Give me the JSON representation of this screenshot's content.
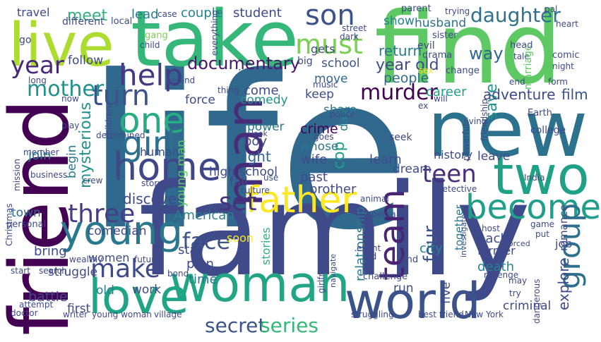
{
  "words": [
    {
      "text": "life",
      "color": "#31688e"
    },
    {
      "text": "family",
      "color": "#3e4a89"
    },
    {
      "text": "find",
      "color": "#5ec962"
    },
    {
      "text": "take",
      "color": "#35b779"
    },
    {
      "text": "new",
      "color": "#2c728e"
    },
    {
      "text": "friend",
      "color": "#440154"
    },
    {
      "text": "live",
      "color": "#addc30"
    },
    {
      "text": "woman",
      "color": "#21a585"
    },
    {
      "text": "world",
      "color": "#3b528b"
    },
    {
      "text": "love",
      "color": "#20a486"
    },
    {
      "text": "two",
      "color": "#1fa187"
    },
    {
      "text": "young",
      "color": "#2a788e"
    },
    {
      "text": "man",
      "color": "#472c7a"
    },
    {
      "text": "home",
      "color": "#3f4788"
    },
    {
      "text": "one",
      "color": "#27ad81"
    },
    {
      "text": "girl",
      "color": "#2d718e"
    },
    {
      "text": "father",
      "color": "#fde725"
    },
    {
      "text": "become",
      "color": "#1f9e89"
    },
    {
      "text": "help",
      "color": "#443983"
    },
    {
      "text": "turn",
      "color": "#3b528b"
    },
    {
      "text": "three",
      "color": "#433e85"
    },
    {
      "text": "set",
      "color": "#46337e"
    },
    {
      "text": "team",
      "color": "#482475"
    },
    {
      "text": "group",
      "color": "#2e6f8e"
    },
    {
      "text": "make",
      "color": "#3e4a89"
    },
    {
      "text": "year",
      "color": "#482878"
    },
    {
      "text": "must",
      "color": "#7ad151"
    },
    {
      "text": "son",
      "color": "#3b528b"
    },
    {
      "text": "mother",
      "color": "#21918c"
    },
    {
      "text": "teen",
      "color": "#472d7b"
    },
    {
      "text": "daughter",
      "color": "#2c728e"
    },
    {
      "text": "murder",
      "color": "#440154"
    },
    {
      "text": "secret",
      "color": "#3b528b"
    },
    {
      "text": "series",
      "color": "#35b779"
    },
    {
      "text": "face",
      "color": "#3a548c"
    },
    {
      "text": "four",
      "color": "#3b528b"
    },
    {
      "text": "meet",
      "color": "#2db27d"
    },
    {
      "text": "lead",
      "color": "#287c8e"
    },
    {
      "text": "couple",
      "color": "#25848e"
    },
    {
      "text": "student",
      "color": "#3e4989"
    },
    {
      "text": "documentary",
      "color": "#481769"
    },
    {
      "text": "return",
      "color": "#2a788e"
    },
    {
      "text": "year old",
      "color": "#3e4a89"
    },
    {
      "text": "way",
      "color": "#31688e"
    },
    {
      "text": "husband",
      "color": "#2c728e"
    },
    {
      "text": "show",
      "color": "#26828e"
    },
    {
      "text": "school",
      "color": "#3b528b"
    },
    {
      "text": "people",
      "color": "#31688e"
    },
    {
      "text": "save",
      "color": "#21918c"
    },
    {
      "text": "journey",
      "color": "#31688e"
    },
    {
      "text": "move",
      "color": "#31688e"
    },
    {
      "text": "come",
      "color": "#3e4a89"
    },
    {
      "text": "keep",
      "color": "#3e4a89"
    },
    {
      "text": "career",
      "color": "#1f9e89"
    },
    {
      "text": "adventure",
      "color": "#3e4a89"
    },
    {
      "text": "film",
      "color": "#3b528b"
    },
    {
      "text": "force",
      "color": "#3e4a89"
    },
    {
      "text": "comedy",
      "color": "#21918c"
    },
    {
      "text": "share",
      "color": "#2a788e"
    },
    {
      "text": "day",
      "color": "#26828e"
    },
    {
      "text": "cop",
      "color": "#1f9e89"
    },
    {
      "text": "crime",
      "color": "#440154"
    },
    {
      "text": "power",
      "color": "#2a788e"
    },
    {
      "text": "boy",
      "color": "#3e4a89"
    },
    {
      "text": "fight",
      "color": "#31688e"
    },
    {
      "text": "whose",
      "color": "#2a788e"
    },
    {
      "text": "wife",
      "color": "#3e4a89"
    },
    {
      "text": "learn",
      "color": "#3e4a89"
    },
    {
      "text": "dream",
      "color": "#3e4a89"
    },
    {
      "text": "human",
      "color": "#3e4a89"
    },
    {
      "text": "high school",
      "color": "#3e4a89"
    },
    {
      "text": "past",
      "color": "#3e4a89"
    },
    {
      "text": "history",
      "color": "#3e4a89"
    },
    {
      "text": "leave",
      "color": "#3e4a89"
    },
    {
      "text": "brother",
      "color": "#3e4a89"
    },
    {
      "text": "join",
      "color": "#2a788e"
    },
    {
      "text": "begin",
      "color": "#2a788e"
    },
    {
      "text": "mysterious",
      "color": "#21918c"
    },
    {
      "text": "fall",
      "color": "#3e4a89"
    },
    {
      "text": "discover",
      "color": "#3e4a89"
    },
    {
      "text": "young man",
      "color": "#5ec962"
    },
    {
      "text": "American",
      "color": "#26828e"
    },
    {
      "text": "comedian",
      "color": "#3e4a89"
    },
    {
      "text": "relationship",
      "color": "#2a788e"
    },
    {
      "text": "together",
      "color": "#2a788e"
    },
    {
      "text": "city",
      "color": "#26828e"
    },
    {
      "text": "back",
      "color": "#3e4a89"
    },
    {
      "text": "romance",
      "color": "#3e4a89"
    },
    {
      "text": "former",
      "color": "#3e4a89"
    },
    {
      "text": "star",
      "color": "#3e4a89"
    },
    {
      "text": "plan",
      "color": "#3e4a89"
    },
    {
      "text": "time",
      "color": "#2a788e"
    },
    {
      "text": "soon",
      "color": "#fde725"
    },
    {
      "text": "stories",
      "color": "#2db27d"
    },
    {
      "text": "bring",
      "color": "#3e4a89"
    },
    {
      "text": "women",
      "color": "#3e4a89"
    },
    {
      "text": "struggle",
      "color": "#3e4a89"
    },
    {
      "text": "death",
      "color": "#26828e"
    },
    {
      "text": "job",
      "color": "#3e4a89"
    },
    {
      "text": "explore",
      "color": "#3e4a89"
    },
    {
      "text": "work",
      "color": "#3e4a89"
    },
    {
      "text": "old",
      "color": "#26828e"
    },
    {
      "text": "battle",
      "color": "#3e4a89"
    },
    {
      "text": "first",
      "color": "#3e4a89"
    },
    {
      "text": "run",
      "color": "#3e4a89"
    },
    {
      "text": "five",
      "color": "#3e4a89"
    },
    {
      "text": "criminal",
      "color": "#3e4a89"
    },
    {
      "text": "town",
      "color": "#31688e"
    },
    {
      "text": "follow",
      "color": "#3e4a89"
    },
    {
      "text": "travel",
      "color": "#3e4a89"
    },
    {
      "text": "different",
      "color": "#3e4a89"
    },
    {
      "text": "go",
      "color": "#3e4a89"
    },
    {
      "text": "local",
      "color": "#3e4a89"
    },
    {
      "text": "case",
      "color": "#3e4a89"
    },
    {
      "text": "gang",
      "color": "#7ad151"
    },
    {
      "text": "child",
      "color": "#3e4a89"
    },
    {
      "text": "street",
      "color": "#3e4a89"
    },
    {
      "text": "dark",
      "color": "#3e4a89"
    },
    {
      "text": "gets",
      "color": "#3e4a89"
    },
    {
      "text": "big",
      "color": "#3e4a89"
    },
    {
      "text": "parent",
      "color": "#3e4a89"
    },
    {
      "text": "trying",
      "color": "#3e4a89"
    },
    {
      "text": "heart",
      "color": "#3e4a89"
    },
    {
      "text": "sister",
      "color": "#3e4a89"
    },
    {
      "text": "evil",
      "color": "#3e4a89"
    },
    {
      "text": "drama",
      "color": "#3e4a89"
    },
    {
      "text": "head",
      "color": "#3e4a89"
    },
    {
      "text": "tale",
      "color": "#3e4a89"
    },
    {
      "text": "comic",
      "color": "#3e4a89"
    },
    {
      "text": "night",
      "color": "#3e4a89"
    },
    {
      "text": "marriage",
      "color": "#5ec962"
    },
    {
      "text": "change",
      "color": "#3e4a89"
    },
    {
      "text": "sex",
      "color": "#fde725"
    },
    {
      "text": "pal",
      "color": "#3e4a89"
    },
    {
      "text": "end",
      "color": "#3e4a89"
    },
    {
      "text": "form",
      "color": "#3e4a89"
    },
    {
      "text": "behind",
      "color": "#3e4a89"
    },
    {
      "text": "everything",
      "color": "#3e4a89"
    },
    {
      "text": "thing",
      "color": "#3e4a89"
    },
    {
      "text": "music",
      "color": "#3e4a89"
    },
    {
      "text": "will",
      "color": "#3e4a89"
    },
    {
      "text": "ex",
      "color": "#3e4a89"
    },
    {
      "text": "long",
      "color": "#3e4a89"
    },
    {
      "text": "now",
      "color": "#3e4a89"
    },
    {
      "text": "determined",
      "color": "#3e4a89"
    },
    {
      "text": "police",
      "color": "#3e4a89"
    },
    {
      "text": "friendship",
      "color": "#3e4a89"
    },
    {
      "text": "living",
      "color": "#3e4a89"
    },
    {
      "text": "powerful",
      "color": "#3e4a89"
    },
    {
      "text": "Earth",
      "color": "#3e4a89"
    },
    {
      "text": "college",
      "color": "#3e4a89"
    },
    {
      "text": "look",
      "color": "#3e4a89"
    },
    {
      "text": "goes",
      "color": "#3e4a89"
    },
    {
      "text": "seek",
      "color": "#3e4a89"
    },
    {
      "text": "play",
      "color": "#3e4a89"
    },
    {
      "text": "children",
      "color": "#3e4a89"
    },
    {
      "text": "member",
      "color": "#3e4a89"
    },
    {
      "text": "mission",
      "color": "#3e4a89"
    },
    {
      "text": "Christmas",
      "color": "#3e4a89"
    },
    {
      "text": "business",
      "color": "#3e4a89"
    },
    {
      "text": "India",
      "color": "#3e4a89"
    },
    {
      "text": "crew",
      "color": "#3e4a89"
    },
    {
      "text": "story",
      "color": "#3e4a89"
    },
    {
      "text": "use",
      "color": "#3e4a89"
    },
    {
      "text": "culture",
      "color": "#3e4a89"
    },
    {
      "text": "detective",
      "color": "#3e4a89"
    },
    {
      "text": "animal",
      "color": "#3e4a89"
    },
    {
      "text": "hit",
      "color": "#3e4a89"
    },
    {
      "text": "special",
      "color": "#3e4a89"
    },
    {
      "text": "personal",
      "color": "#3e4a89"
    },
    {
      "text": "host",
      "color": "#3e4a89"
    },
    {
      "text": "game",
      "color": "#3e4a89"
    },
    {
      "text": "put",
      "color": "#3e4a89"
    },
    {
      "text": "forced",
      "color": "#3e4a89"
    },
    {
      "text": "investigate",
      "color": "#3e4a89"
    },
    {
      "text": "event",
      "color": "#3e4a89"
    },
    {
      "text": "kid",
      "color": "#3e4a89"
    },
    {
      "text": "land",
      "color": "#3e4a89"
    },
    {
      "text": "navigate",
      "color": "#3e4a89"
    },
    {
      "text": "girlfriend",
      "color": "#3e4a89"
    },
    {
      "text": "future",
      "color": "#3e4a89"
    },
    {
      "text": "wealthy",
      "color": "#3e4a89"
    },
    {
      "text": "start",
      "color": "#3e4a89"
    },
    {
      "text": "search",
      "color": "#3e4a89"
    },
    {
      "text": "bond",
      "color": "#3e4a89"
    },
    {
      "text": "challenge",
      "color": "#3e4a89"
    },
    {
      "text": "revenge",
      "color": "#3e4a89"
    },
    {
      "text": "may",
      "color": "#3e4a89"
    },
    {
      "text": "try",
      "color": "#3e4a89"
    },
    {
      "text": "dangerous",
      "color": "#3e4a89"
    },
    {
      "text": "attempt",
      "color": "#3e4a89"
    },
    {
      "text": "doctor",
      "color": "#3e4a89"
    },
    {
      "text": "writer",
      "color": "#3e4a89"
    },
    {
      "text": "young woman",
      "color": "#3e4a89"
    },
    {
      "text": "village",
      "color": "#3e4a89"
    },
    {
      "text": "struggling",
      "color": "#3e4a89"
    },
    {
      "text": "best friend",
      "color": "#3e4a89"
    },
    {
      "text": "New York",
      "color": "#3e4a89"
    }
  ]
}
